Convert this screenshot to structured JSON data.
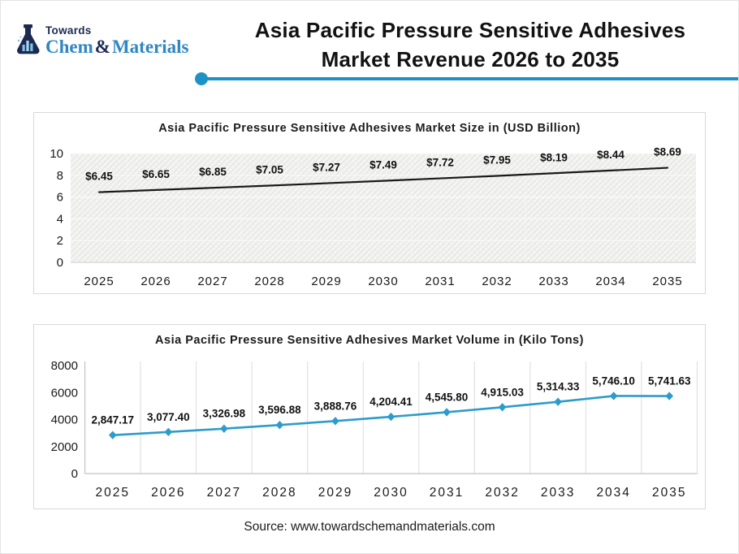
{
  "header": {
    "logo": {
      "top_text": "Towards",
      "name_part1": "Chem",
      "ampersand": "&",
      "name_part2": "Materials",
      "navy_color": "#1c2a52",
      "blue_color": "#2f86c3"
    },
    "title_line1": "Asia Pacific Pressure Sensitive Adhesives",
    "title_line2": "Market Revenue 2026 to 2035",
    "accent_color": "#1d93c5"
  },
  "footer": {
    "source_text": "Source: www.towardschemandmaterials.com"
  },
  "chart_data": [
    {
      "type": "line",
      "title": "Asia Pacific Pressure Sensitive Adhesives Market Size in (USD Billion)",
      "categories": [
        "2025",
        "2026",
        "2027",
        "2028",
        "2029",
        "2030",
        "2031",
        "2032",
        "2033",
        "2034",
        "2035"
      ],
      "values": [
        6.45,
        6.65,
        6.85,
        7.05,
        7.27,
        7.49,
        7.72,
        7.95,
        8.19,
        8.44,
        8.69
      ],
      "point_labels": [
        "$6.45",
        "$6.65",
        "$6.85",
        "$7.05",
        "$7.27",
        "$7.49",
        "$7.72",
        "$7.95",
        "$8.19",
        "$8.44",
        "$8.69"
      ],
      "xlabel": "",
      "ylabel": "",
      "ylim": [
        0,
        10
      ],
      "yticks": [
        0,
        2,
        4,
        6,
        8,
        10
      ],
      "line_color": "#1a1a1a",
      "marker": "none",
      "plot_background": "hatched-light-gray",
      "grid": "none",
      "legend": "none"
    },
    {
      "type": "line",
      "title": "Asia Pacific Pressure Sensitive Adhesives Market Volume in (Kilo Tons)",
      "categories": [
        "2025",
        "2026",
        "2027",
        "2028",
        "2029",
        "2030",
        "2031",
        "2032",
        "2033",
        "2034",
        "2035"
      ],
      "values": [
        2847.17,
        3077.4,
        3326.98,
        3596.88,
        3888.76,
        4204.41,
        4545.8,
        4915.03,
        5314.33,
        5746.1,
        5741.63
      ],
      "point_labels": [
        "2,847.17",
        "3,077.40",
        "3,326.98",
        "3,596.88",
        "3,888.76",
        "4,204.41",
        "4,545.80",
        "4,915.03",
        "5,314.33",
        "5,746.10",
        "5,741.63"
      ],
      "xlabel": "",
      "ylabel": "",
      "ylim": [
        0,
        8000
      ],
      "yticks": [
        0,
        2000,
        4000,
        6000,
        8000
      ],
      "line_color": "#2d9cca",
      "marker": "diamond",
      "plot_background": "white",
      "grid": "vertical",
      "legend": "none"
    }
  ]
}
